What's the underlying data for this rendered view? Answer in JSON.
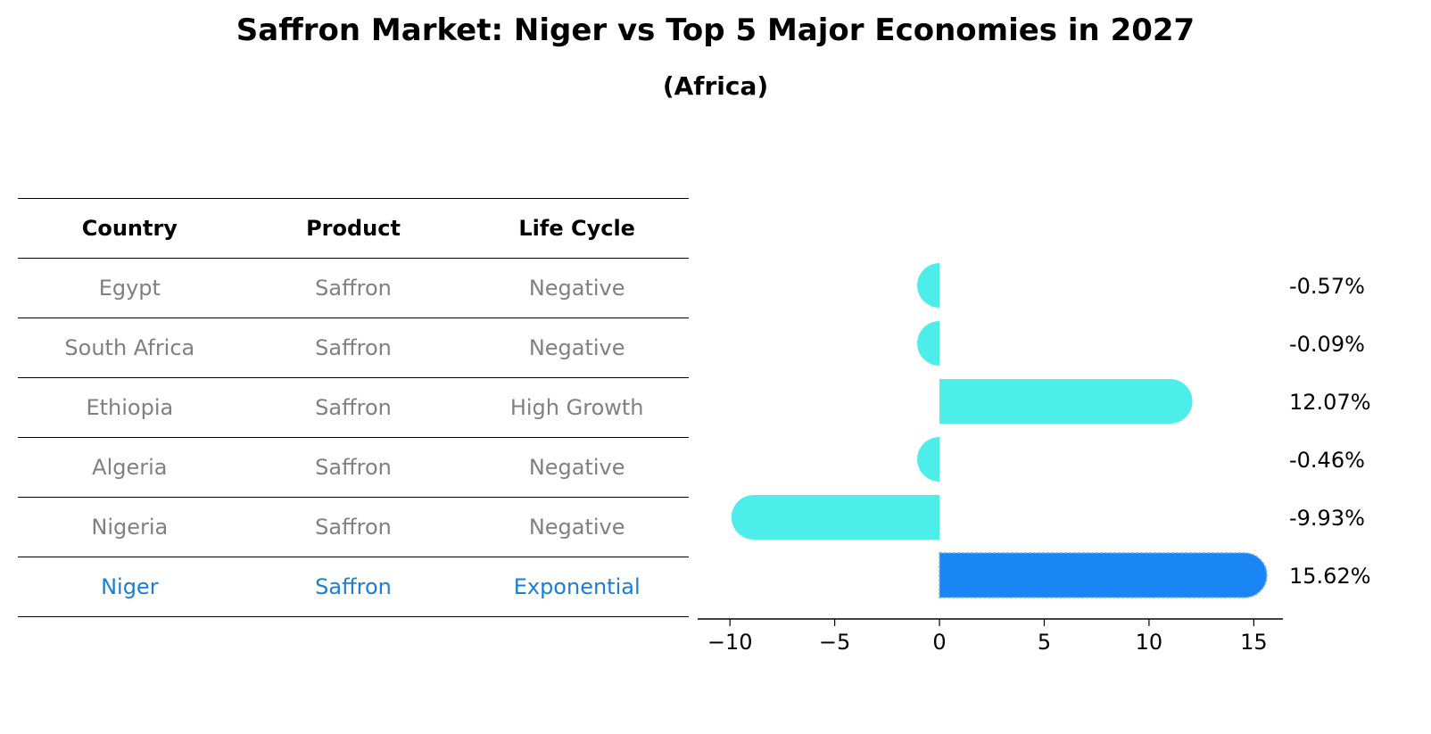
{
  "title": "Saffron Market: Niger vs Top 5 Major Economies in 2027",
  "subtitle": "(Africa)",
  "table": {
    "headers": [
      "Country",
      "Product",
      "Life Cycle"
    ],
    "rows": [
      {
        "country": "Egypt",
        "product": "Saffron",
        "life_cycle": "Negative",
        "highlight": false
      },
      {
        "country": "South Africa",
        "product": "Saffron",
        "life_cycle": "Negative",
        "highlight": false
      },
      {
        "country": "Ethiopia",
        "product": "Saffron",
        "life_cycle": "High Growth",
        "highlight": false
      },
      {
        "country": "Algeria",
        "product": "Saffron",
        "life_cycle": "Negative",
        "highlight": false
      },
      {
        "country": "Nigeria",
        "product": "Saffron",
        "life_cycle": "Negative",
        "highlight": false
      },
      {
        "country": "Niger",
        "product": "Saffron",
        "life_cycle": "Exponential",
        "highlight": true
      }
    ]
  },
  "colors": {
    "bar": "#4deeea",
    "highlight_bar": "#1a85f5",
    "highlight_text": "#1a7fd1",
    "muted_text": "#808080"
  },
  "chart_data": {
    "type": "bar",
    "orientation": "horizontal",
    "categories": [
      "Egypt",
      "South Africa",
      "Ethiopia",
      "Algeria",
      "Nigeria",
      "Niger"
    ],
    "values": [
      -0.57,
      -0.09,
      12.07,
      -0.46,
      -9.93,
      15.62
    ],
    "labels": [
      "-0.57%",
      "-0.09%",
      "12.07%",
      "-0.46%",
      "-9.93%",
      "15.62%"
    ],
    "highlight": "Niger",
    "xlim": [
      -11.2,
      16.9
    ],
    "xticks": [
      -10,
      -5,
      0,
      5,
      10,
      15
    ],
    "xtick_labels": [
      "−10",
      "−5",
      "0",
      "5",
      "10",
      "15"
    ]
  }
}
